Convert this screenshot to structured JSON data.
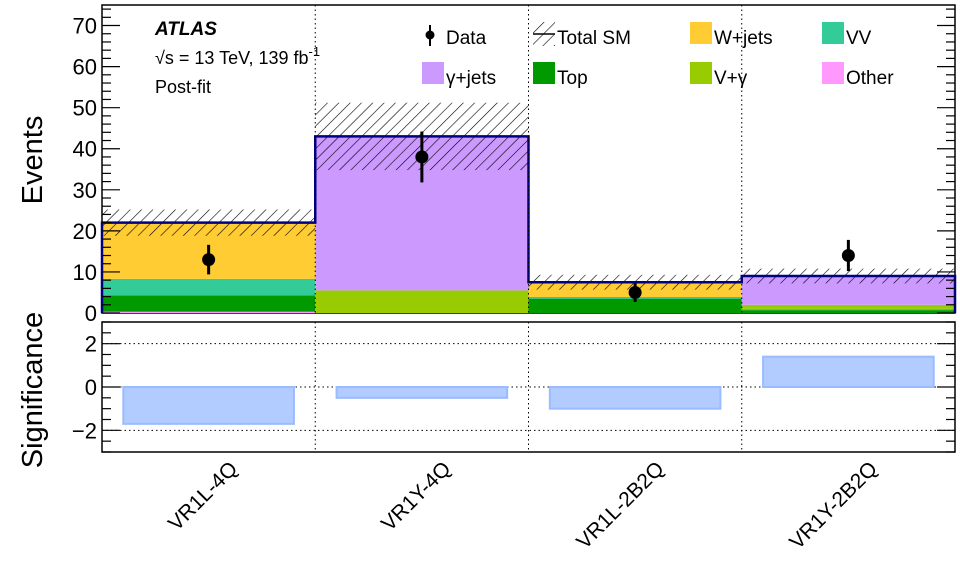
{
  "chart_data": {
    "type": "bar",
    "experiment": "ATLAS",
    "energy_text": "√s = 13 TeV, 139 fb",
    "lumi_exponent": "-1",
    "fit_text": "Post-fit",
    "categories": [
      "VR1L-4Q",
      "VR1Y-4Q",
      "VR1L-2B2Q",
      "VR1Y-2B2Q"
    ],
    "top_panel": {
      "ylabel": "Events",
      "ylim": [
        0,
        75
      ],
      "yticks": [
        0,
        10,
        20,
        30,
        40,
        50,
        60,
        70
      ],
      "stack_order": [
        "Other",
        "Top",
        "VV",
        "V+γ",
        "W+jets",
        "γ+jets"
      ],
      "series": [
        {
          "name": "Other",
          "color": "#ff99ff",
          "values": [
            0.3,
            0.0,
            0.0,
            0.0
          ]
        },
        {
          "name": "Top",
          "color": "#009900",
          "values": [
            4.0,
            0.0,
            3.5,
            0.7
          ]
        },
        {
          "name": "VV",
          "color": "#33cc99",
          "values": [
            4.0,
            0.0,
            0.4,
            0.3
          ]
        },
        {
          "name": "V+γ",
          "color": "#99cc00",
          "values": [
            0.0,
            5.5,
            0.0,
            1.0
          ]
        },
        {
          "name": "W+jets",
          "color": "#ffcc33",
          "values": [
            13.5,
            0.0,
            3.5,
            0.0
          ]
        },
        {
          "name": "γ+jets",
          "color": "#cc99ff",
          "values": [
            0.0,
            37.5,
            0.0,
            7.0
          ]
        }
      ],
      "total_sm": {
        "name": "Total SM",
        "color": "#000080",
        "values": [
          22,
          43,
          7.5,
          9
        ],
        "uncertainty": [
          3.2,
          8.2,
          1.8,
          1.8
        ]
      },
      "data": {
        "name": "Data",
        "values": [
          13,
          38,
          5,
          14
        ],
        "err_up": [
          3.6,
          6.2,
          2.3,
          3.8
        ],
        "err_down": [
          3.6,
          6.2,
          2.3,
          3.8
        ]
      }
    },
    "bottom_panel": {
      "ylabel": "Significance",
      "ylim": [
        -3,
        3
      ],
      "yticks": [
        -2,
        0,
        2
      ],
      "values": [
        -1.7,
        -0.5,
        -1.0,
        1.4
      ],
      "bar_color": "#b3ccff",
      "bar_edge": "#99bbff"
    },
    "legend": [
      {
        "label": "Data",
        "kind": "data"
      },
      {
        "label": "Total SM",
        "kind": "hatch"
      },
      {
        "label": "W+jets",
        "kind": "fill",
        "color": "#ffcc33"
      },
      {
        "label": "VV",
        "kind": "fill",
        "color": "#33cc99"
      },
      {
        "label": "γ+jets",
        "kind": "fill",
        "color": "#cc99ff"
      },
      {
        "label": "Top",
        "kind": "fill",
        "color": "#009900"
      },
      {
        "label": "V+γ",
        "kind": "fill",
        "color": "#99cc00"
      },
      {
        "label": "Other",
        "kind": "fill",
        "color": "#ff99ff"
      }
    ],
    "grid": "dotted vertical and horizontal lines in significance panel, dotted vertical lines in top panel",
    "legend_placement": "top"
  }
}
